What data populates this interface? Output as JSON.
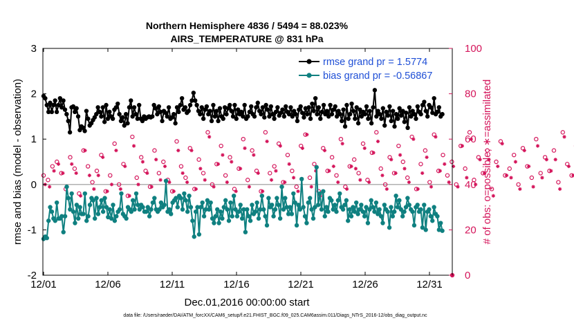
{
  "figure": {
    "title_line1": "Northern Hemisphere 4836 / 5494 = 88.023%",
    "title_line2": "AIRS_TEMPERATURE @ 831 hPa",
    "footer": "data file: /Users/raeder/DAI/ATM_forcXX/CAM6_setup/f.e21.FHIST_BGC.f09_025.CAM6assim.011/Diags_NTrS_2016-12/obs_diag_output.nc"
  },
  "colors": {
    "rmse": "#000000",
    "bias": "#0f8080",
    "obs": "#d4145a",
    "legend_text": "#1f4fd6",
    "zero_line": "#b0b0b0"
  },
  "chart_data": {
    "type": "line",
    "title": "Northern Hemisphere 4836 / 5494 = 88.023%",
    "subtitle": "AIRS_TEMPERATURE @ 831 hPa",
    "xlabel": "Dec.01,2016 00:00:00 start",
    "ylabel": "rmse and bias (model - observation)",
    "ylabel_right": "# of obs: o=possible; ∗=assimilated",
    "x_tick_labels": [
      "12/01",
      "12/06",
      "12/11",
      "12/16",
      "12/21",
      "12/26",
      "12/31"
    ],
    "x_tick_days": [
      0,
      5,
      10,
      15,
      20,
      25,
      30
    ],
    "xlim_days": [
      0,
      31.5
    ],
    "ylim": [
      -2,
      3
    ],
    "y_ticks": [
      -2,
      -1,
      0,
      1,
      2,
      3
    ],
    "ylim_right": [
      0,
      100
    ],
    "y_ticks_right": [
      0,
      20,
      40,
      60,
      80,
      100
    ],
    "x_step_days": 0.25,
    "legend_position": "top-right",
    "series": [
      {
        "name": "rmse grand pr = 1.5774",
        "values": [
          1.95,
          1.9,
          1.75,
          1.6,
          1.8,
          1.6,
          1.75,
          1.85,
          1.6,
          1.75,
          1.9,
          1.7,
          1.85,
          1.65,
          1.55,
          1.4,
          1.15,
          1.7,
          1.72,
          1.6,
          1.68,
          1.5,
          1.2,
          1.28,
          1.25,
          1.18,
          1.62,
          1.45,
          1.3,
          1.35,
          1.42,
          1.48,
          1.55,
          1.7,
          1.6,
          1.5,
          1.7,
          1.38,
          1.75,
          1.45,
          1.6,
          1.5,
          1.45,
          1.65,
          1.7,
          1.78,
          1.55,
          1.4,
          1.48,
          1.3,
          1.55,
          1.35,
          1.7,
          1.85,
          1.5,
          1.7,
          1.55,
          1.45,
          1.75,
          1.45,
          1.4,
          1.5,
          1.45,
          1.48,
          1.5,
          1.48,
          1.5,
          1.75,
          1.68,
          1.55,
          1.72,
          1.6,
          1.4,
          1.62,
          1.58,
          1.5,
          1.7,
          1.45,
          1.48,
          1.55,
          1.35,
          1.7,
          1.6,
          1.75,
          1.9,
          1.65,
          1.7,
          1.58,
          1.62,
          1.75,
          1.85,
          2.02,
          1.85,
          1.75,
          1.62,
          1.55,
          1.7,
          1.45,
          1.65,
          1.72,
          1.55,
          1.62,
          1.4,
          1.75,
          1.5,
          1.62,
          1.4,
          1.68,
          1.5,
          1.45,
          1.7,
          1.55,
          1.68,
          1.75,
          1.62,
          1.5,
          1.75,
          1.45,
          1.65,
          1.55,
          1.6,
          1.5,
          1.75,
          1.45,
          1.5,
          1.6,
          1.72,
          1.55,
          1.5,
          1.7,
          1.8,
          1.62,
          1.55,
          1.7,
          1.48,
          1.75,
          1.65,
          1.5,
          1.72,
          1.55,
          1.45,
          1.6,
          1.7,
          1.52,
          1.58,
          1.65,
          1.5,
          1.72,
          1.6,
          1.55,
          1.7,
          1.5,
          1.62,
          1.55,
          1.4,
          1.65,
          1.72,
          1.58,
          1.48,
          1.68,
          1.55,
          1.7,
          1.45,
          1.78,
          1.62,
          1.9,
          1.55,
          1.7,
          1.45,
          1.6,
          1.75,
          1.55,
          1.62,
          1.5,
          1.75,
          1.55,
          1.65,
          1.72,
          1.5,
          1.62,
          1.55,
          1.4,
          1.65,
          1.28,
          1.75,
          1.45,
          1.55,
          1.78,
          1.62,
          1.45,
          1.7,
          1.35,
          1.65,
          1.5,
          1.6,
          1.55,
          1.72,
          1.45,
          1.62,
          1.35,
          1.7,
          2.08,
          1.5,
          1.62,
          1.55,
          1.45,
          1.68,
          1.3,
          1.6,
          1.52,
          1.72,
          1.4,
          1.62,
          1.28,
          1.55,
          1.45,
          1.68,
          1.52,
          1.62,
          1.38,
          1.58,
          1.25,
          1.7,
          1.5,
          1.62,
          1.55,
          1.45,
          1.72,
          1.6,
          1.55,
          1.75,
          1.82,
          1.62,
          1.5,
          1.75,
          1.7,
          1.58,
          1.9,
          1.55,
          1.6,
          1.7,
          1.5,
          1.55
        ]
      },
      {
        "name": "bias grand pr = -0.56867",
        "values": [
          -1.2,
          -1.15,
          -1.18,
          -0.8,
          -0.5,
          -0.6,
          -0.75,
          -0.8,
          -0.4,
          -0.75,
          -0.75,
          -0.7,
          -1.05,
          -0.7,
          -0.05,
          -0.3,
          -0.55,
          -0.2,
          -0.6,
          -0.85,
          -0.45,
          -0.75,
          -0.5,
          -0.65,
          -0.65,
          -0.2,
          -0.8,
          -0.7,
          -0.45,
          -0.3,
          -0.35,
          -0.75,
          -0.3,
          -0.65,
          -0.5,
          -0.35,
          -0.6,
          -0.3,
          -0.5,
          -0.72,
          -0.55,
          -0.75,
          -0.45,
          -0.8,
          -0.7,
          -0.6,
          -0.55,
          -0.2,
          -0.65,
          -0.7,
          -0.75,
          -0.5,
          -0.55,
          -0.6,
          -0.35,
          -0.55,
          -0.2,
          -0.45,
          -0.55,
          -0.45,
          -0.5,
          -0.6,
          -0.6,
          -0.5,
          -0.7,
          -0.55,
          -0.4,
          -0.3,
          -0.55,
          -0.6,
          -0.55,
          -0.4,
          -0.5,
          -0.45,
          0.08,
          -0.6,
          -0.55,
          -0.65,
          -0.4,
          -0.35,
          -0.3,
          -0.5,
          -0.25,
          -0.3,
          -0.55,
          -0.2,
          -0.35,
          -0.6,
          -0.25,
          -0.5,
          -0.8,
          -1.15,
          -0.6,
          -0.5,
          -1.1,
          -0.5,
          -0.4,
          -0.7,
          -0.55,
          -0.35,
          -0.55,
          -0.4,
          -0.75,
          -0.85,
          -0.7,
          -0.55,
          -0.85,
          -0.6,
          -0.75,
          -0.5,
          -0.35,
          -0.55,
          -0.8,
          -0.4,
          -0.7,
          -0.25,
          -0.55,
          -0.7,
          -0.6,
          -0.45,
          -0.75,
          -0.55,
          -1.05,
          -0.55,
          -0.7,
          -0.8,
          -0.45,
          -0.65,
          -0.6,
          -0.4,
          -0.75,
          -0.55,
          -0.25,
          -0.55,
          -0.7,
          -0.9,
          -0.3,
          -0.5,
          -0.45,
          -0.7,
          -0.55,
          -0.3,
          -0.45,
          -0.75,
          -0.05,
          -0.55,
          -0.3,
          -0.5,
          -0.65,
          -0.5,
          -0.65,
          -0.2,
          -0.4,
          -0.9,
          -0.45,
          -0.55,
          0.12,
          -0.5,
          -0.7,
          -0.85,
          -0.4,
          -0.3,
          -0.55,
          -0.75,
          -0.5,
          0.38,
          -0.45,
          -0.2,
          -0.55,
          -0.15,
          -0.7,
          -0.5,
          -0.6,
          -0.3,
          -0.35,
          -0.55,
          -0.45,
          -0.6,
          -0.35,
          -0.2,
          -0.5,
          -0.55,
          -0.45,
          -0.35,
          -0.8,
          -0.55,
          -0.7,
          -0.5,
          -0.6,
          -0.4,
          -0.65,
          -0.55,
          -0.45,
          -0.6,
          -0.7,
          -0.5,
          -0.85,
          -0.55,
          -0.35,
          -0.5,
          -0.6,
          -0.4,
          -0.65,
          -0.55,
          -0.7,
          -0.85,
          -0.45,
          -0.55,
          -0.6,
          -0.95,
          -0.5,
          -0.7,
          -0.6,
          -0.25,
          -0.5,
          -0.35,
          -0.55,
          -0.7,
          -0.6,
          -0.5,
          -0.3,
          -0.45,
          -0.55,
          -0.6,
          -0.9,
          -0.5,
          -0.45,
          -0.6,
          -0.55,
          -0.95,
          -0.45,
          -1.0,
          -0.6,
          -0.55,
          -0.7,
          -0.8,
          -0.5,
          -0.65,
          -0.7,
          -1.0,
          -0.85,
          -1.02
        ]
      }
    ],
    "obs_possible_right_axis": [
      44,
      42,
      48,
      50,
      45,
      38,
      52,
      47,
      36,
      55,
      48,
      41,
      46,
      53,
      37,
      44,
      58,
      40,
      49,
      35,
      61,
      43,
      52,
      46,
      39,
      55,
      45,
      50,
      42,
      37,
      59,
      48,
      43,
      56,
      38,
      51,
      45,
      63,
      40,
      49,
      57,
      44,
      52,
      38,
      47,
      60,
      42,
      55,
      46,
      37,
      63,
      45,
      48,
      58,
      41,
      53,
      46,
      39,
      57,
      62,
      43,
      49,
      37,
      56,
      46,
      52,
      44,
      60,
      39,
      48,
      51,
      45,
      58,
      42,
      54,
      63,
      47,
      40,
      52,
      45,
      57,
      50,
      43,
      61,
      38,
      49,
      55,
      41,
      62,
      46,
      53,
      44,
      50,
      40,
      57,
      47,
      63,
      42,
      52,
      45,
      55,
      38,
      50,
      59,
      44,
      47,
      53,
      40,
      56,
      48,
      43,
      60,
      45,
      52,
      46,
      55,
      41,
      63,
      49,
      44,
      57,
      51,
      38,
      62,
      46,
      53,
      43,
      58,
      47,
      50,
      40,
      55,
      44,
      61,
      48,
      52,
      39,
      57,
      45,
      50,
      43,
      62,
      47,
      54,
      41,
      58,
      46,
      50,
      38,
      57,
      44,
      52,
      45,
      60,
      42,
      49,
      55,
      40,
      58,
      46,
      53,
      43,
      50,
      37,
      56,
      48,
      44,
      52,
      39,
      61,
      47,
      51,
      43,
      57,
      45,
      49,
      38,
      55,
      42,
      50,
      36,
      47
    ]
  },
  "legend": {
    "rmse_label": "rmse grand pr = 1.5774",
    "bias_label": "bias grand pr = -0.56867"
  }
}
